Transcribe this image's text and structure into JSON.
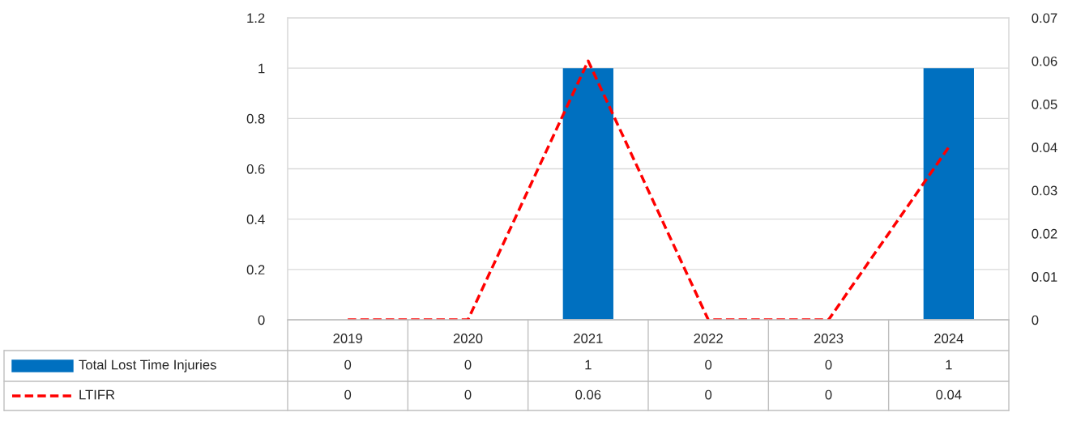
{
  "chart_data": {
    "type": "bar",
    "categories": [
      "2019",
      "2020",
      "2021",
      "2022",
      "2023",
      "2024"
    ],
    "series": [
      {
        "name": "Total Lost Time Injuries",
        "color": "#0070c0",
        "values": [
          0,
          0,
          1,
          0,
          0,
          1
        ]
      },
      {
        "name": "LTIFR",
        "type": "line",
        "axis": "y2",
        "color": "#ff0000",
        "line_style": "dashed",
        "values": [
          0,
          0,
          0.06,
          0,
          0,
          0.04
        ]
      }
    ],
    "ylim": [
      0,
      1.2
    ],
    "yticks": [
      0,
      0.2,
      0.4,
      0.6,
      0.8,
      1,
      1.2
    ],
    "y2lim": [
      0,
      0.07
    ],
    "y2ticks": [
      0,
      0.01,
      0.02,
      0.03,
      0.04,
      0.05,
      0.06,
      0.07
    ],
    "grid": "y",
    "legend": "bottom",
    "data_labels": true
  }
}
